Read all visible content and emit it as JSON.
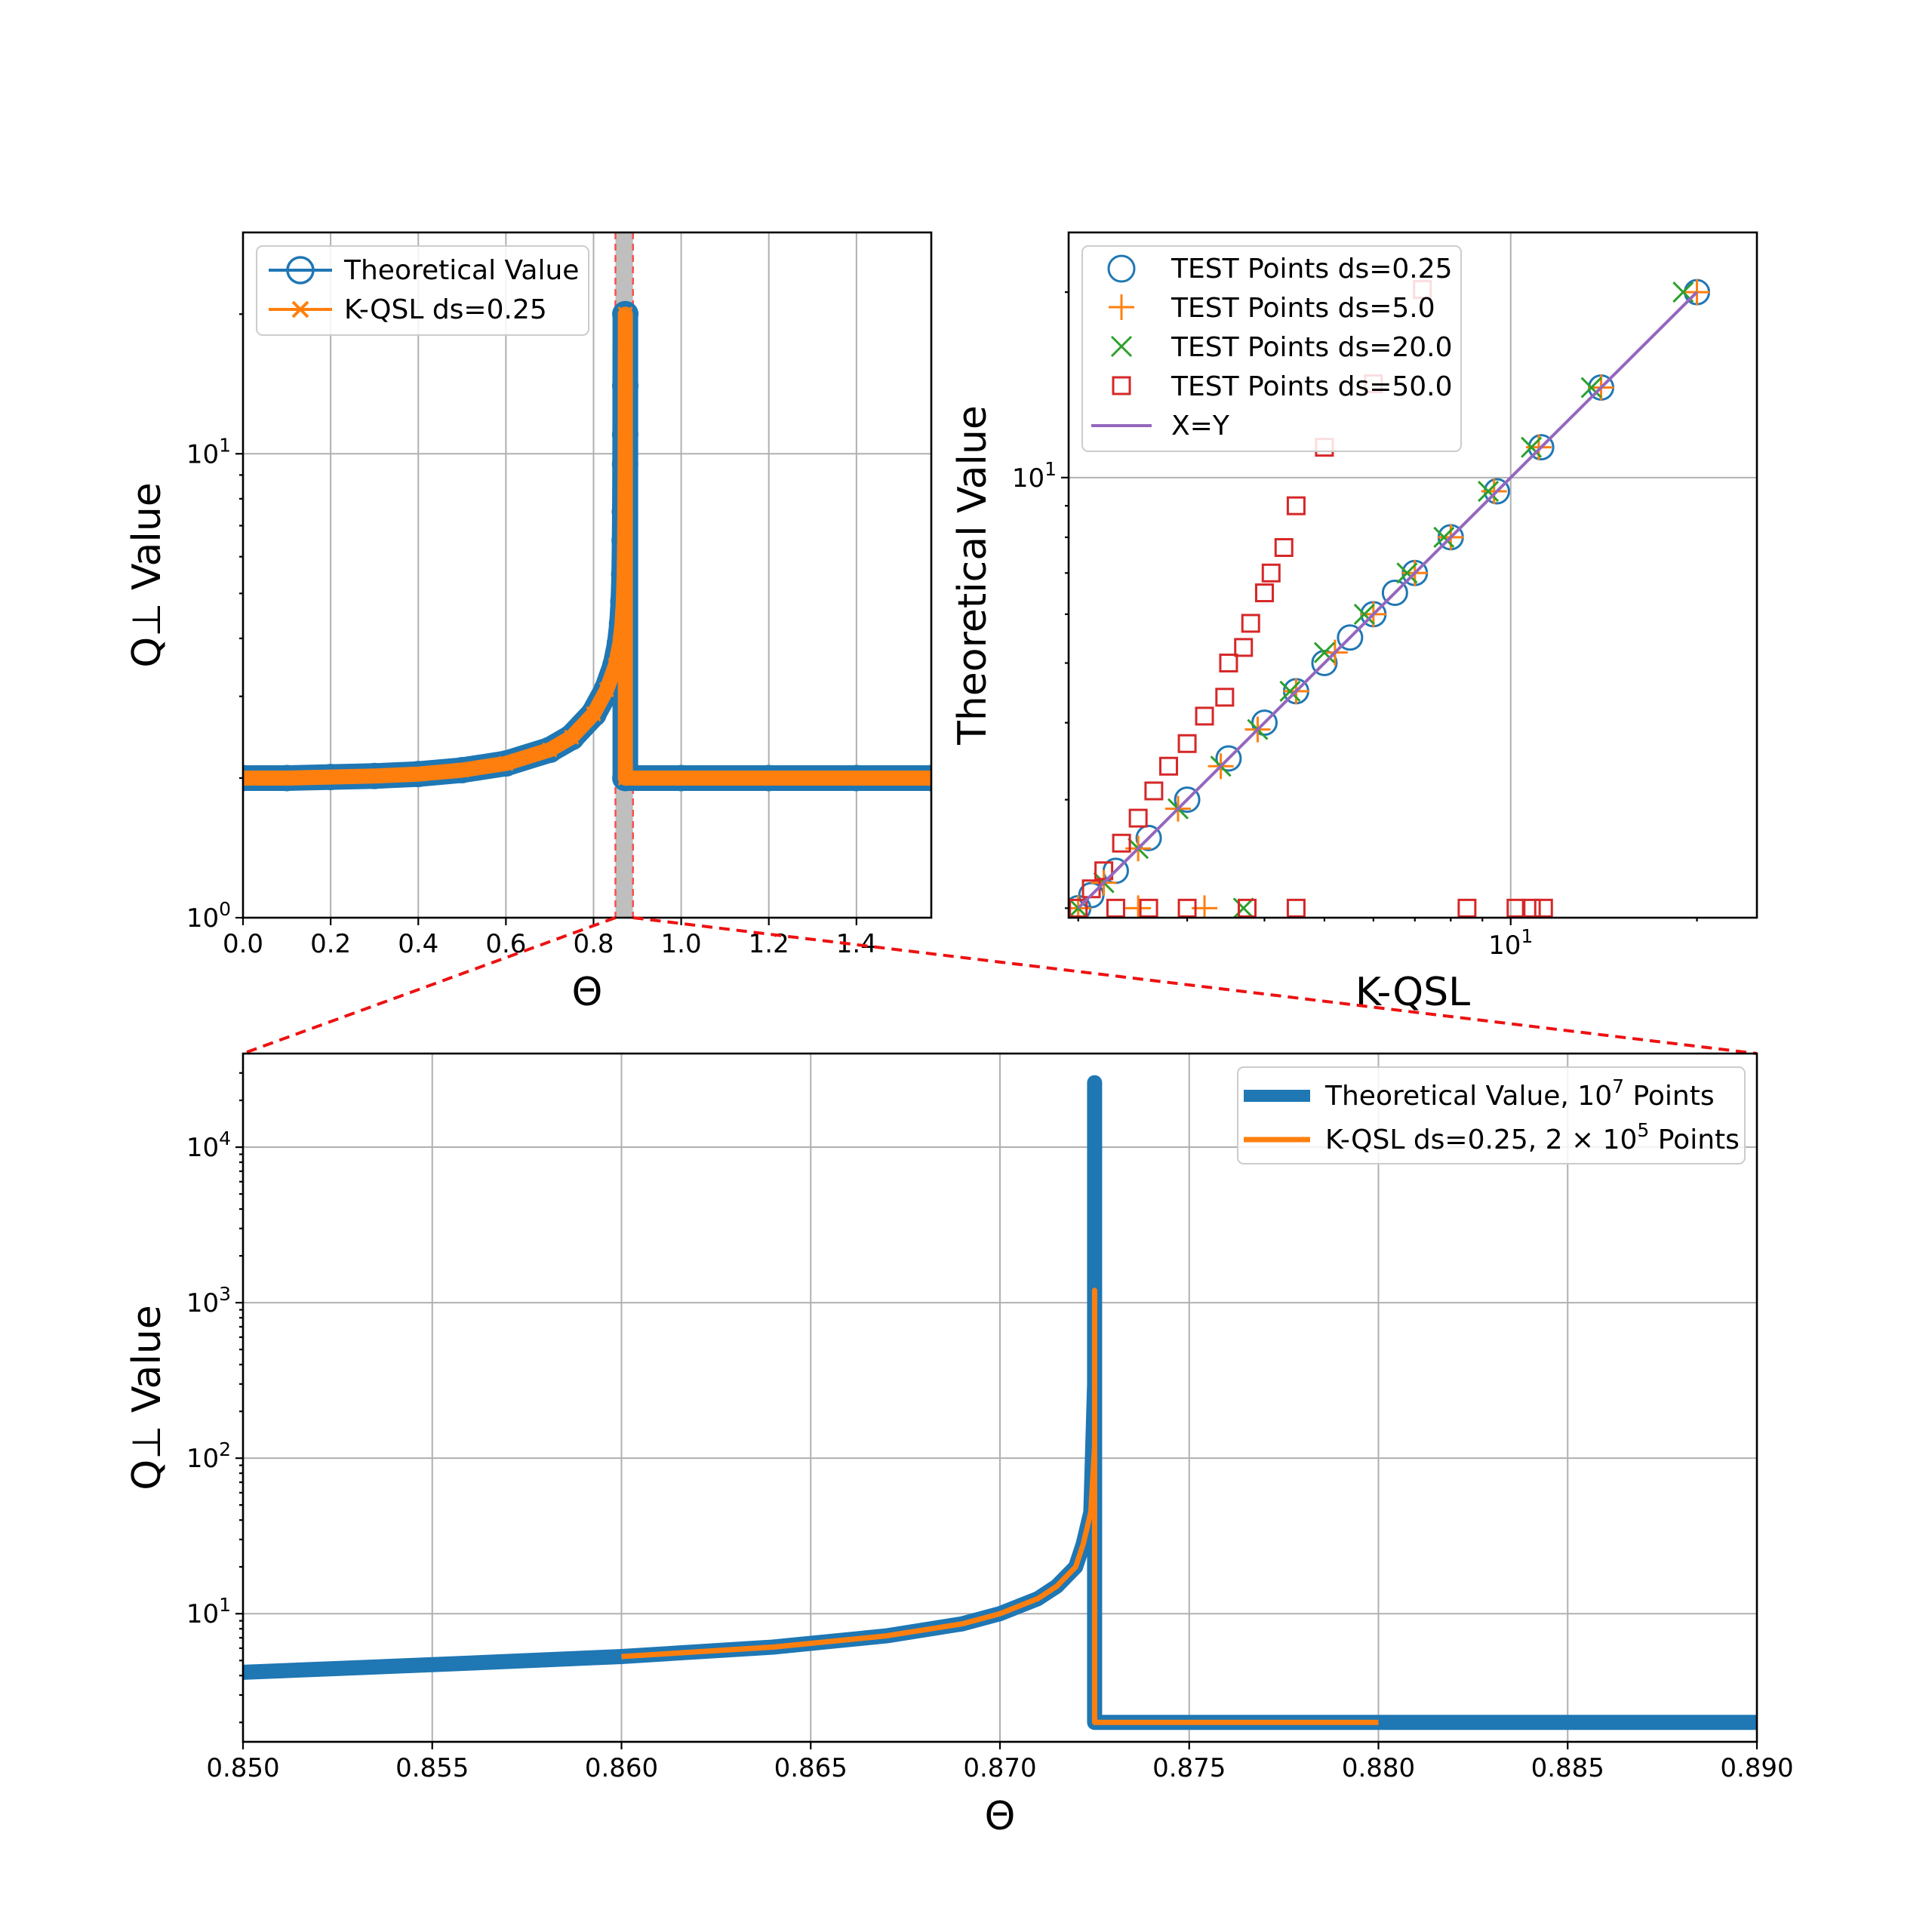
{
  "chart_data": [
    {
      "id": "top_left",
      "type": "line",
      "xlabel": "Θ",
      "ylabel": "Q⊥ Value",
      "xlim": [
        0.0,
        1.5708
      ],
      "ylim": [
        1,
        30
      ],
      "yscale": "log",
      "xticks": [
        "0.0",
        "0.2",
        "0.4",
        "0.6",
        "0.8",
        "1.0",
        "1.2",
        "1.4"
      ],
      "ytick_labels": [
        {
          "base": "10",
          "exp": "0"
        },
        {
          "base": "10",
          "exp": "1"
        }
      ],
      "highlight_span": [
        0.85,
        0.89
      ],
      "legend": {
        "position": "upper left",
        "entries": [
          "Theoretical Value",
          "K-QSL ds=0.25"
        ]
      },
      "series": [
        {
          "name": "Theoretical Value",
          "color": "#1f77b4",
          "marker": "circle",
          "x": [
            0.0,
            0.1,
            0.2,
            0.3,
            0.4,
            0.5,
            0.6,
            0.7,
            0.75,
            0.8,
            0.83,
            0.85,
            0.86,
            0.865,
            0.868,
            0.87,
            0.871,
            0.8715,
            0.872,
            0.8722,
            0.8724,
            0.8725,
            0.8726,
            1.0,
            1.2,
            1.4,
            1.5708
          ],
          "y": [
            2.0,
            2.0,
            2.01,
            2.02,
            2.04,
            2.08,
            2.15,
            2.3,
            2.45,
            2.75,
            3.1,
            3.5,
            3.9,
            4.3,
            4.8,
            5.5,
            6.5,
            7.5,
            9.5,
            11,
            14,
            20,
            2.0,
            2.0,
            2.0,
            2.0,
            2.0
          ]
        },
        {
          "name": "K-QSL ds=0.25",
          "color": "#ff7f0e",
          "marker": "x",
          "x": [
            0.0,
            0.1,
            0.2,
            0.3,
            0.4,
            0.5,
            0.6,
            0.7,
            0.75,
            0.8,
            0.83,
            0.85,
            0.86,
            0.865,
            0.868,
            0.87,
            0.871,
            0.8715,
            0.872,
            0.8722,
            0.8724,
            0.8725,
            0.8726,
            1.0,
            1.2,
            1.4,
            1.5708
          ],
          "y": [
            2.0,
            2.0,
            2.01,
            2.02,
            2.04,
            2.08,
            2.15,
            2.3,
            2.45,
            2.75,
            3.1,
            3.5,
            3.9,
            4.3,
            4.8,
            5.5,
            6.5,
            7.5,
            9.5,
            11,
            14,
            20,
            2.0,
            2.0,
            2.0,
            2.0,
            2.0
          ]
        }
      ]
    },
    {
      "id": "top_right",
      "type": "scatter",
      "xlabel": "K-QSL",
      "ylabel": "Theoretical Value",
      "xscale": "log",
      "yscale": "log",
      "xlim": [
        1.93,
        25
      ],
      "ylim": [
        1.93,
        25
      ],
      "xtick_labels": [
        {
          "value": 10,
          "base": "10",
          "exp": "1"
        }
      ],
      "ytick_labels": [
        {
          "value": 10,
          "base": "10",
          "exp": "1"
        }
      ],
      "legend": {
        "position": "upper left",
        "entries": [
          "TEST Points ds=0.25",
          "TEST Points ds=5.0",
          "TEST Points ds=20.0",
          "TEST Points ds=50.0",
          "X=Y"
        ]
      },
      "series": [
        {
          "name": "TEST Points ds=0.25",
          "color": "#1f77b4",
          "marker": "circle",
          "x": [
            2.0,
            2.1,
            2.3,
            2.6,
            3.0,
            3.5,
            4.0,
            4.5,
            5.0,
            5.5,
            6.0,
            6.5,
            7.0,
            8.0,
            9.5,
            11.2,
            14.0,
            20.0
          ],
          "y": [
            2.0,
            2.1,
            2.3,
            2.6,
            3.0,
            3.5,
            4.0,
            4.5,
            5.0,
            5.5,
            6.0,
            6.5,
            7.0,
            8.0,
            9.5,
            11.2,
            14.0,
            20.0
          ]
        },
        {
          "name": "TEST Points ds=5.0",
          "color": "#ff7f0e",
          "marker": "plus",
          "x": [
            2.0,
            2.2,
            2.5,
            2.9,
            3.4,
            3.9,
            4.5,
            5.2,
            6.0,
            7.0,
            8.0,
            9.4,
            11.1,
            14.0,
            20.0,
            2.5,
            3.2
          ],
          "y": [
            2.0,
            2.2,
            2.5,
            2.9,
            3.4,
            3.9,
            4.5,
            5.2,
            6.0,
            7.0,
            8.0,
            9.5,
            11.2,
            14.0,
            20.0,
            2.0,
            2.0
          ]
        },
        {
          "name": "TEST Points ds=20.0",
          "color": "#2ca02c",
          "marker": "x",
          "x": [
            2.0,
            2.2,
            2.5,
            2.9,
            3.4,
            3.9,
            4.4,
            5.0,
            5.8,
            6.8,
            7.8,
            9.2,
            10.8,
            13.5,
            19.0,
            3.7
          ],
          "y": [
            2.0,
            2.2,
            2.5,
            2.9,
            3.4,
            3.9,
            4.5,
            5.2,
            6.0,
            7.0,
            8.0,
            9.5,
            11.2,
            14.0,
            20.0,
            2.0
          ]
        },
        {
          "name": "TEST Points ds=50.0",
          "color": "#d62728",
          "marker": "square",
          "x": [
            2.0,
            2.1,
            2.2,
            2.35,
            2.5,
            2.65,
            2.8,
            3.0,
            3.2,
            3.45,
            3.5,
            3.7,
            3.8,
            4.0,
            4.1,
            4.3,
            4.5,
            5.0,
            6.0,
            7.2,
            8.5,
            2.3,
            2.6,
            3.0,
            3.75,
            4.5,
            10.2,
            10.8,
            11.3
          ],
          "y": [
            2.0,
            2.15,
            2.3,
            2.55,
            2.8,
            3.1,
            3.4,
            3.7,
            4.1,
            4.4,
            5.0,
            5.3,
            5.8,
            6.5,
            7.0,
            7.7,
            9.0,
            11.2,
            14.2,
            20.2,
            2.0,
            2.0,
            2.0,
            2.0,
            2.0,
            2.0,
            2.0,
            2.0,
            2.0
          ]
        },
        {
          "name": "X=Y",
          "color": "#9467bd",
          "marker": "line",
          "x": [
            2.0,
            20.0
          ],
          "y": [
            2.0,
            20.0
          ]
        }
      ]
    },
    {
      "id": "bottom",
      "type": "line",
      "xlabel": "Θ",
      "ylabel": "Q⊥ Value",
      "xlim": [
        0.85,
        0.89
      ],
      "ylim": [
        1.5,
        40000
      ],
      "yscale": "log",
      "xticks": [
        "0.850",
        "0.855",
        "0.860",
        "0.865",
        "0.870",
        "0.875",
        "0.880",
        "0.885",
        "0.890"
      ],
      "ytick_labels": [
        {
          "base": "10",
          "exp": "1"
        },
        {
          "base": "10",
          "exp": "2"
        },
        {
          "base": "10",
          "exp": "3"
        },
        {
          "base": "10",
          "exp": "4"
        }
      ],
      "legend": {
        "position": "upper right",
        "entries": [
          {
            "text": "Theoretical Value, 10",
            "sup": "7",
            "tail": " Points"
          },
          {
            "text": "K-QSL ds=0.25, 2 × 10",
            "sup": "5",
            "tail": " Points"
          }
        ]
      },
      "series": [
        {
          "name": "Theoretical Value, 10^7 Points",
          "color": "#1f77b4",
          "x": [
            0.85,
            0.855,
            0.86,
            0.864,
            0.867,
            0.869,
            0.87,
            0.871,
            0.8715,
            0.872,
            0.8722,
            0.8724,
            0.8725,
            0.8725,
            0.8725,
            0.89
          ],
          "y": [
            4.2,
            4.7,
            5.3,
            6.1,
            7.2,
            8.6,
            10.0,
            12.5,
            15.0,
            20.0,
            28.0,
            45.0,
            300.0,
            26000.0,
            2.0,
            2.0
          ]
        },
        {
          "name": "K-QSL ds=0.25, 2 × 10^5 Points",
          "color": "#ff7f0e",
          "x": [
            0.86,
            0.864,
            0.867,
            0.869,
            0.87,
            0.871,
            0.8715,
            0.872,
            0.8722,
            0.8724,
            0.8725,
            0.8725,
            0.8725,
            0.88
          ],
          "y": [
            5.3,
            6.1,
            7.2,
            8.6,
            10.0,
            12.5,
            15.0,
            20.0,
            28.0,
            45.0,
            120.0,
            1200.0,
            2.0,
            2.0
          ]
        }
      ]
    }
  ]
}
